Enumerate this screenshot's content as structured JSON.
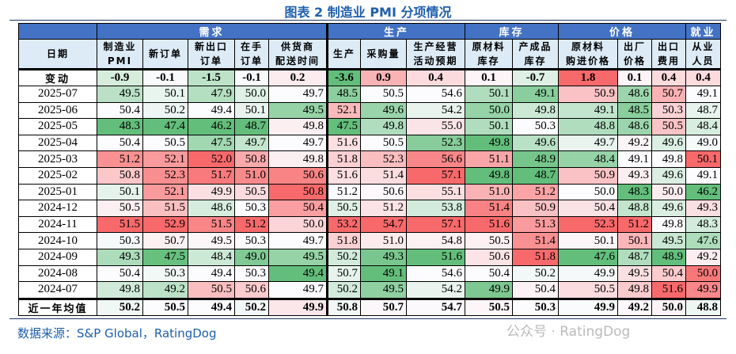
{
  "title": "图表 2 制造业 PMI 分项情况",
  "source": "数据来源：S&P Global，RatingDog",
  "watermark": "公众号 · RatingDog",
  "chart_data": {
    "type": "table",
    "colors": {
      "low": "#63BE7B",
      "mid": "#FCFCFF",
      "high": "#F8696B",
      "header_group": "#4472C4",
      "header_sub": "#DDEBF7",
      "title": "#1F5FAD"
    },
    "groups": [
      {
        "label": "",
        "span": 1
      },
      {
        "label": "需求",
        "span": 5
      },
      {
        "label": "生产",
        "span": 3
      },
      {
        "label": "库存",
        "span": 2
      },
      {
        "label": "价格",
        "span": 3
      },
      {
        "label": "就业",
        "span": 1
      }
    ],
    "columns": [
      [
        "日期"
      ],
      [
        "制造业",
        "PMI"
      ],
      [
        "新订单"
      ],
      [
        "新出口",
        "订单"
      ],
      [
        "在手",
        "订单"
      ],
      [
        "供货商",
        "配送时间"
      ],
      [
        "生产"
      ],
      [
        "采购量"
      ],
      [
        "生产经营",
        "活动预期"
      ],
      [
        "原材料",
        "库存"
      ],
      [
        "产成品",
        "库存"
      ],
      [
        "原材料",
        "购进价格"
      ],
      [
        "出厂",
        "价格"
      ],
      [
        "出口",
        "费用"
      ],
      [
        "从业",
        "人员"
      ]
    ],
    "change": {
      "label": "变动",
      "values": [
        "-0.9",
        "-0.1",
        "-1.5",
        "-0.1",
        "0.2",
        "-3.6",
        "0.9",
        "0.4",
        "0.1",
        "-0.7",
        "1.8",
        "0.1",
        "0.4",
        "0.4"
      ]
    },
    "rows": [
      {
        "date": "2025-07",
        "values": [
          "49.5",
          "50.1",
          "47.9",
          "50.0",
          "49.7",
          "48.5",
          "50.5",
          "54.6",
          "50.1",
          "49.1",
          "50.9",
          "48.6",
          "50.7",
          "49.1"
        ]
      },
      {
        "date": "2025-06",
        "values": [
          "50.4",
          "50.2",
          "49.4",
          "50.1",
          "49.5",
          "52.1",
          "49.6",
          "54.2",
          "50.0",
          "49.8",
          "49.1",
          "48.5",
          "50.3",
          "48.7"
        ]
      },
      {
        "date": "2025-05",
        "values": [
          "48.3",
          "47.4",
          "46.2",
          "48.7",
          "49.8",
          "47.5",
          "49.8",
          "55.0",
          "50.1",
          "50.3",
          "48.8",
          "48.6",
          "50.5",
          "48.4"
        ]
      },
      {
        "date": "2025-04",
        "values": [
          "50.4",
          "50.5",
          "47.5",
          "49.7",
          "49.7",
          "51.6",
          "50.5",
          "52.3",
          "49.8",
          "49.6",
          "49.7",
          "49.2",
          "49.6",
          "49.0"
        ]
      },
      {
        "date": "2025-03",
        "values": [
          "51.2",
          "52.1",
          "52.0",
          "50.8",
          "49.8",
          "51.8",
          "52.3",
          "56.6",
          "51.1",
          "48.9",
          "48.4",
          "49.1",
          "49.8",
          "50.1"
        ]
      },
      {
        "date": "2025-02",
        "values": [
          "50.8",
          "52.3",
          "51.7",
          "51.0",
          "50.6",
          "51.6",
          "51.4",
          "57.1",
          "49.8",
          "48.7",
          "50.9",
          "49.3",
          "49.6",
          "49.1"
        ]
      },
      {
        "date": "2025-01",
        "values": [
          "50.1",
          "52.1",
          "49.9",
          "50.5",
          "50.8",
          "51.2",
          "50.6",
          "55.1",
          "51.0",
          "51.2",
          "50.0",
          "48.3",
          "50.0",
          "46.2"
        ]
      },
      {
        "date": "2024-12",
        "values": [
          "50.5",
          "51.5",
          "48.6",
          "50.3",
          "50.4",
          "50.5",
          "51.2",
          "53.8",
          "51.4",
          "50.9",
          "50.4",
          "48.8",
          "49.6",
          "49.3"
        ]
      },
      {
        "date": "2024-11",
        "values": [
          "51.5",
          "52.9",
          "51.5",
          "51.2",
          "50.0",
          "53.2",
          "54.7",
          "57.1",
          "51.6",
          "51.3",
          "52.3",
          "51.2",
          "49.8",
          "48.3"
        ]
      },
      {
        "date": "2024-10",
        "values": [
          "50.3",
          "50.7",
          "49.5",
          "50.3",
          "49.7",
          "51.8",
          "51.0",
          "54.8",
          "50.5",
          "51.4",
          "50.1",
          "50.1",
          "49.5",
          "47.6"
        ]
      },
      {
        "date": "2024-09",
        "values": [
          "49.3",
          "47.5",
          "48.4",
          "49.0",
          "49.5",
          "50.2",
          "49.3",
          "51.6",
          "50.6",
          "51.8",
          "47.6",
          "48.7",
          "48.9",
          "49.2"
        ]
      },
      {
        "date": "2024-08",
        "values": [
          "50.4",
          "50.3",
          "49.4",
          "50.3",
          "49.4",
          "50.7",
          "49.1",
          "54.6",
          "50.4",
          "50.2",
          "49.9",
          "49.5",
          "50.4",
          "50.0"
        ]
      },
      {
        "date": "2024-07",
        "values": [
          "49.8",
          "49.2",
          "50.5",
          "50.6",
          "49.7",
          "50.2",
          "49.5",
          "54.2",
          "49.9",
          "50.4",
          "50.5",
          "49.8",
          "51.6",
          "49.9"
        ]
      }
    ],
    "average": {
      "label": "近一年均值",
      "values": [
        "50.2",
        "50.5",
        "49.4",
        "50.2",
        "49.9",
        "50.8",
        "50.7",
        "54.7",
        "50.5",
        "50.3",
        "49.9",
        "49.2",
        "50.0",
        "48.8"
      ]
    }
  }
}
